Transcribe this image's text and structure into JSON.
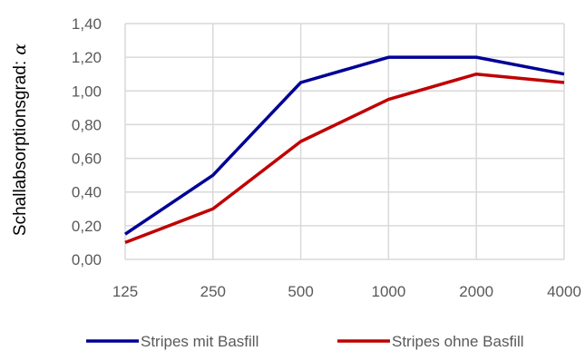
{
  "chart_data": {
    "type": "line",
    "categories": [
      "125",
      "250",
      "500",
      "1000",
      "2000",
      "4000"
    ],
    "series": [
      {
        "name": "Stripes mit Basfill",
        "color": "#000096",
        "values": [
          0.15,
          0.5,
          1.05,
          1.2,
          1.2,
          1.1
        ]
      },
      {
        "name": "Stripes ohne Basfill",
        "color": "#C00000",
        "values": [
          0.1,
          0.3,
          0.7,
          0.95,
          1.1,
          1.05
        ]
      }
    ],
    "yticks": [
      "0,00",
      "0,20",
      "0,40",
      "0,60",
      "0,80",
      "1,00",
      "1,20",
      "1,40"
    ],
    "ylim": [
      0,
      1.4
    ],
    "ylabel": "Schallabsorptionsgrad:",
    "ylabel_symbol": "α",
    "xlabel": "",
    "title": "",
    "grid": true,
    "legend_position": "bottom"
  }
}
